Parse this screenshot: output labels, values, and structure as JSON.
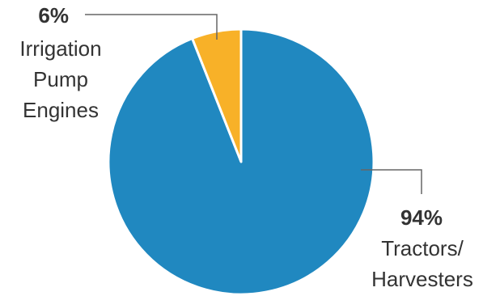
{
  "chart_data": {
    "type": "pie",
    "title": "",
    "slices": [
      {
        "value_label": "94%",
        "value": 94,
        "label_lines": [
          "Tractors/",
          "Harvesters"
        ],
        "color": "#2088C0"
      },
      {
        "value_label": "6%",
        "value": 6,
        "label_lines": [
          "Irrigation",
          "Pump",
          "Engines"
        ],
        "color": "#F8B128"
      }
    ],
    "start_angle_deg": 0,
    "direction": "clockwise",
    "slice_border_color": "#ffffff",
    "leader_line_color": "#666666",
    "text_color": "#333333"
  }
}
